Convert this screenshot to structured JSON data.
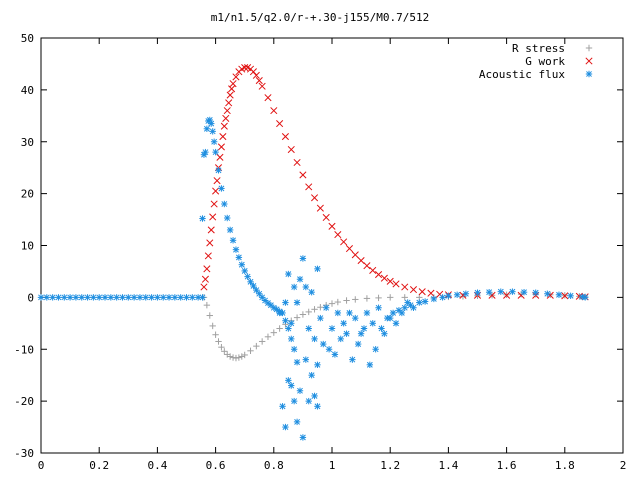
{
  "chart_data": {
    "type": "scatter",
    "title": "m1/n1.5/q2.0/r-+.30-j155/M0.7/512",
    "xlabel": "",
    "ylabel": "",
    "xlim": [
      0,
      2
    ],
    "ylim": [
      -30,
      50
    ],
    "xticks": [
      "0",
      "0.2",
      "0.4",
      "0.6",
      "0.8",
      "1",
      "1.2",
      "1.4",
      "1.6",
      "1.8",
      "2"
    ],
    "yticks": [
      "-30",
      "-20",
      "-10",
      "0",
      "10",
      "20",
      "30",
      "40",
      "50"
    ],
    "grid": false,
    "legend_position": "top-right",
    "series": [
      {
        "name": "R stress",
        "marker": "+",
        "color": "#a0a0a0",
        "points": [
          [
            0.56,
            0
          ],
          [
            0.57,
            -1.5
          ],
          [
            0.58,
            -3.5
          ],
          [
            0.59,
            -5.5
          ],
          [
            0.6,
            -7.2
          ],
          [
            0.61,
            -8.5
          ],
          [
            0.62,
            -9.6
          ],
          [
            0.63,
            -10.4
          ],
          [
            0.64,
            -11
          ],
          [
            0.65,
            -11.4
          ],
          [
            0.66,
            -11.6
          ],
          [
            0.67,
            -11.7
          ],
          [
            0.68,
            -11.6
          ],
          [
            0.69,
            -11.4
          ],
          [
            0.7,
            -11.1
          ],
          [
            0.72,
            -10.3
          ],
          [
            0.74,
            -9.4
          ],
          [
            0.76,
            -8.5
          ],
          [
            0.78,
            -7.6
          ],
          [
            0.8,
            -6.8
          ],
          [
            0.82,
            -6
          ],
          [
            0.84,
            -5.2
          ],
          [
            0.86,
            -4.5
          ],
          [
            0.88,
            -3.9
          ],
          [
            0.9,
            -3.3
          ],
          [
            0.92,
            -2.8
          ],
          [
            0.94,
            -2.3
          ],
          [
            0.96,
            -1.9
          ],
          [
            0.98,
            -1.5
          ],
          [
            1,
            -1.2
          ],
          [
            1.02,
            -0.9
          ],
          [
            1.05,
            -0.6
          ],
          [
            1.08,
            -0.4
          ],
          [
            1.12,
            -0.2
          ],
          [
            1.16,
            -0.1
          ],
          [
            1.2,
            0
          ],
          [
            1.25,
            0
          ],
          [
            1.3,
            0
          ],
          [
            1.35,
            0
          ],
          [
            1.4,
            0.1
          ],
          [
            1.45,
            0.2
          ],
          [
            1.5,
            0.3
          ],
          [
            1.55,
            0.4
          ],
          [
            1.6,
            0.5
          ],
          [
            1.65,
            0.6
          ],
          [
            1.7,
            0.6
          ],
          [
            1.75,
            0.5
          ],
          [
            1.8,
            0.4
          ],
          [
            1.85,
            0.2
          ],
          [
            1.87,
            0.1
          ]
        ]
      },
      {
        "name": "G work",
        "marker": "x",
        "color": "#e01010",
        "points": [
          [
            0.56,
            2
          ],
          [
            0.565,
            3.5
          ],
          [
            0.57,
            5.5
          ],
          [
            0.575,
            8
          ],
          [
            0.58,
            10.5
          ],
          [
            0.585,
            13
          ],
          [
            0.59,
            15.5
          ],
          [
            0.595,
            18
          ],
          [
            0.6,
            20.5
          ],
          [
            0.605,
            22.5
          ],
          [
            0.61,
            25
          ],
          [
            0.615,
            27
          ],
          [
            0.62,
            29
          ],
          [
            0.625,
            31
          ],
          [
            0.63,
            33
          ],
          [
            0.635,
            34.5
          ],
          [
            0.64,
            36
          ],
          [
            0.645,
            37.5
          ],
          [
            0.65,
            39
          ],
          [
            0.655,
            40.2
          ],
          [
            0.66,
            41.2
          ],
          [
            0.67,
            42.5
          ],
          [
            0.68,
            43.5
          ],
          [
            0.69,
            44
          ],
          [
            0.7,
            44.3
          ],
          [
            0.71,
            44.3
          ],
          [
            0.72,
            44
          ],
          [
            0.73,
            43.5
          ],
          [
            0.74,
            42.8
          ],
          [
            0.75,
            41.8
          ],
          [
            0.76,
            40.7
          ],
          [
            0.78,
            38.5
          ],
          [
            0.8,
            36
          ],
          [
            0.82,
            33.5
          ],
          [
            0.84,
            31
          ],
          [
            0.86,
            28.5
          ],
          [
            0.88,
            26
          ],
          [
            0.9,
            23.6
          ],
          [
            0.92,
            21.3
          ],
          [
            0.94,
            19.2
          ],
          [
            0.96,
            17.2
          ],
          [
            0.98,
            15.4
          ],
          [
            1,
            13.7
          ],
          [
            1.02,
            12.1
          ],
          [
            1.04,
            10.7
          ],
          [
            1.06,
            9.4
          ],
          [
            1.08,
            8.2
          ],
          [
            1.1,
            7.1
          ],
          [
            1.12,
            6.1
          ],
          [
            1.14,
            5.2
          ],
          [
            1.16,
            4.4
          ],
          [
            1.18,
            3.7
          ],
          [
            1.2,
            3.1
          ],
          [
            1.22,
            2.6
          ],
          [
            1.25,
            2
          ],
          [
            1.28,
            1.5
          ],
          [
            1.31,
            1.1
          ],
          [
            1.34,
            0.8
          ],
          [
            1.37,
            0.6
          ],
          [
            1.4,
            0.5
          ],
          [
            1.45,
            0.4
          ],
          [
            1.5,
            0.4
          ],
          [
            1.55,
            0.4
          ],
          [
            1.6,
            0.4
          ],
          [
            1.65,
            0.4
          ],
          [
            1.7,
            0.4
          ],
          [
            1.75,
            0.4
          ],
          [
            1.8,
            0.3
          ],
          [
            1.85,
            0.2
          ],
          [
            1.87,
            0.1
          ]
        ]
      },
      {
        "name": "Acoustic flux",
        "marker": "*",
        "color": "#1e8ee0",
        "points": [
          [
            0,
            0
          ],
          [
            0.02,
            0
          ],
          [
            0.04,
            0
          ],
          [
            0.06,
            0
          ],
          [
            0.08,
            0
          ],
          [
            0.1,
            0
          ],
          [
            0.12,
            0
          ],
          [
            0.14,
            0
          ],
          [
            0.16,
            0
          ],
          [
            0.18,
            0
          ],
          [
            0.2,
            0
          ],
          [
            0.22,
            0
          ],
          [
            0.24,
            0
          ],
          [
            0.26,
            0
          ],
          [
            0.28,
            0
          ],
          [
            0.3,
            0
          ],
          [
            0.32,
            0
          ],
          [
            0.34,
            0
          ],
          [
            0.36,
            0
          ],
          [
            0.38,
            0
          ],
          [
            0.4,
            0
          ],
          [
            0.42,
            0
          ],
          [
            0.44,
            0
          ],
          [
            0.46,
            0
          ],
          [
            0.48,
            0
          ],
          [
            0.5,
            0
          ],
          [
            0.52,
            0
          ],
          [
            0.54,
            0
          ],
          [
            0.555,
            0
          ],
          [
            0.555,
            15.2
          ],
          [
            0.56,
            27.5
          ],
          [
            0.565,
            28
          ],
          [
            0.57,
            32.5
          ],
          [
            0.575,
            34
          ],
          [
            0.58,
            34.2
          ],
          [
            0.585,
            33.5
          ],
          [
            0.59,
            32
          ],
          [
            0.595,
            30
          ],
          [
            0.6,
            28
          ],
          [
            0.61,
            24.5
          ],
          [
            0.62,
            21
          ],
          [
            0.63,
            18
          ],
          [
            0.64,
            15.3
          ],
          [
            0.65,
            13
          ],
          [
            0.66,
            11
          ],
          [
            0.67,
            9.2
          ],
          [
            0.68,
            7.7
          ],
          [
            0.69,
            6.3
          ],
          [
            0.7,
            5.1
          ],
          [
            0.71,
            4
          ],
          [
            0.72,
            3
          ],
          [
            0.73,
            2.2
          ],
          [
            0.74,
            1.4
          ],
          [
            0.75,
            0.7
          ],
          [
            0.76,
            0
          ],
          [
            0.77,
            -0.6
          ],
          [
            0.78,
            -1.1
          ],
          [
            0.79,
            -1.5
          ],
          [
            0.8,
            -2
          ],
          [
            0.81,
            -2.3
          ],
          [
            0.82,
            -2.7
          ],
          [
            0.83,
            -3
          ],
          [
            0.84,
            -4.5
          ],
          [
            0.85,
            -6
          ],
          [
            0.86,
            -8
          ],
          [
            0.87,
            -10
          ],
          [
            0.88,
            -12.5
          ],
          [
            0.85,
            -16
          ],
          [
            0.86,
            -17
          ],
          [
            0.87,
            -20
          ],
          [
            0.83,
            -21
          ],
          [
            0.84,
            -25
          ],
          [
            0.88,
            -24
          ],
          [
            0.9,
            -27
          ],
          [
            0.92,
            -20
          ],
          [
            0.94,
            -19
          ],
          [
            0.95,
            -21
          ],
          [
            0.93,
            -15
          ],
          [
            0.89,
            -18
          ],
          [
            0.91,
            -12
          ],
          [
            0.95,
            -13
          ],
          [
            0.97,
            -9
          ],
          [
            0.99,
            -10
          ],
          [
            1.01,
            -11
          ],
          [
            1.03,
            -8
          ],
          [
            1.05,
            -7
          ],
          [
            1.07,
            -12
          ],
          [
            1.09,
            -9
          ],
          [
            1.11,
            -6
          ],
          [
            1.13,
            -13
          ],
          [
            1.15,
            -10
          ],
          [
            1.17,
            -6
          ],
          [
            1.19,
            -4
          ],
          [
            1.21,
            -3
          ],
          [
            1.23,
            -2.5
          ],
          [
            1.25,
            -2
          ],
          [
            1.27,
            -1.5
          ],
          [
            1.3,
            -1
          ],
          [
            1.32,
            -0.8
          ],
          [
            1.35,
            -0.3
          ],
          [
            1.38,
            0
          ],
          [
            1.4,
            0.3
          ],
          [
            1.43,
            0.5
          ],
          [
            1.46,
            0.7
          ],
          [
            1.5,
            0.9
          ],
          [
            1.54,
            1
          ],
          [
            1.58,
            1.1
          ],
          [
            1.62,
            1.1
          ],
          [
            1.66,
            1
          ],
          [
            1.7,
            0.9
          ],
          [
            1.74,
            0.7
          ],
          [
            1.78,
            0.5
          ],
          [
            1.82,
            0.3
          ],
          [
            1.86,
            0.1
          ],
          [
            1.87,
            0
          ],
          [
            0.85,
            4.5
          ],
          [
            0.87,
            2
          ],
          [
            0.89,
            3.5
          ],
          [
            0.88,
            -1
          ],
          [
            0.9,
            7.5
          ],
          [
            0.91,
            2
          ],
          [
            0.93,
            1
          ],
          [
            0.95,
            5.5
          ],
          [
            0.82,
            -3
          ],
          [
            0.84,
            -1
          ],
          [
            0.86,
            -5
          ],
          [
            0.92,
            -6
          ],
          [
            0.94,
            -8
          ],
          [
            0.96,
            -4
          ],
          [
            0.98,
            -2
          ],
          [
            1,
            -6
          ],
          [
            1.02,
            -3
          ],
          [
            1.04,
            -5
          ],
          [
            1.06,
            -3
          ],
          [
            1.08,
            -4
          ],
          [
            1.1,
            -7
          ],
          [
            1.12,
            -3
          ],
          [
            1.14,
            -5
          ],
          [
            1.16,
            -2
          ],
          [
            1.18,
            -7
          ],
          [
            1.2,
            -4
          ],
          [
            1.22,
            -5
          ],
          [
            1.24,
            -3
          ],
          [
            1.26,
            -1
          ],
          [
            1.28,
            -2
          ]
        ]
      }
    ]
  }
}
